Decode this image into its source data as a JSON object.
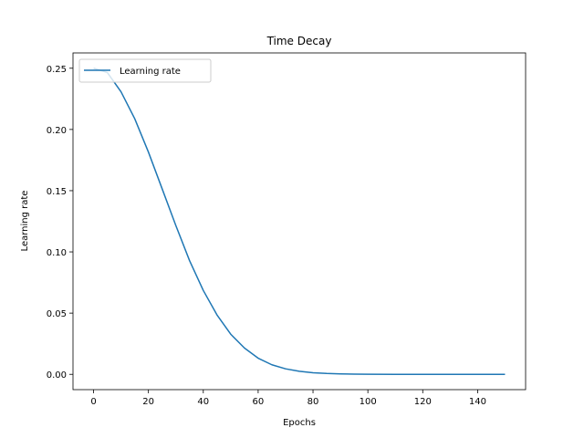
{
  "chart_data": {
    "type": "line",
    "title": "Time Decay",
    "xlabel": "Epochs",
    "ylabel": "Learning rate",
    "xlim": [
      -7.5,
      157.5
    ],
    "ylim": [
      -0.0125,
      0.2625
    ],
    "x_ticks": [
      0,
      20,
      40,
      60,
      80,
      100,
      120,
      140
    ],
    "y_ticks": [
      0.0,
      0.05,
      0.1,
      0.15,
      0.2,
      0.25
    ],
    "y_tick_labels": [
      "0.00",
      "0.05",
      "0.10",
      "0.15",
      "0.20",
      "0.25"
    ],
    "grid": false,
    "legend_position": "upper left",
    "series": [
      {
        "name": "Learning rate",
        "color": "#1f77b4",
        "x": [
          0,
          5,
          10,
          15,
          20,
          25,
          30,
          35,
          40,
          45,
          50,
          55,
          60,
          65,
          70,
          75,
          80,
          85,
          90,
          95,
          100,
          110,
          120,
          130,
          140,
          150
        ],
        "y": [
          0.25,
          0.2465,
          0.2308,
          0.2088,
          0.1815,
          0.1515,
          0.1215,
          0.0928,
          0.0685,
          0.0485,
          0.0328,
          0.0215,
          0.0132,
          0.0078,
          0.0045,
          0.0025,
          0.0013,
          0.0007,
          0.0004,
          0.0002,
          0.0001,
          0.0,
          0.0,
          0.0,
          0.0,
          0.0
        ]
      }
    ]
  }
}
